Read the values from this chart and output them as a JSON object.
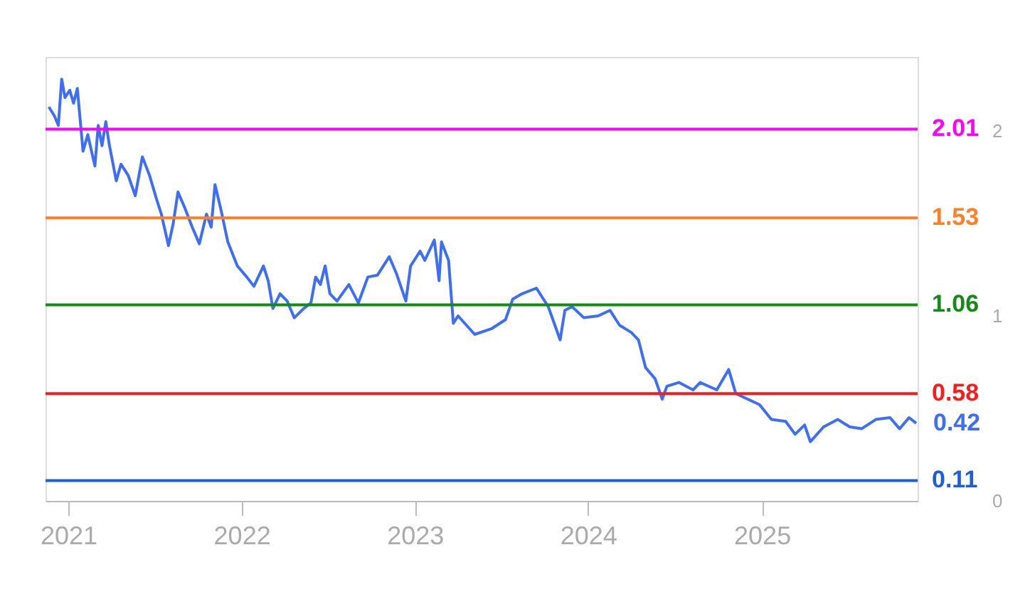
{
  "chart_data": {
    "type": "line",
    "x": [
      "2020-11-21",
      "2020-12-03",
      "2020-12-11",
      "2020-12-18",
      "2020-12-25",
      "2021-01-04",
      "2021-01-12",
      "2021-01-20",
      "2021-02-01",
      "2021-02-11",
      "2021-02-26",
      "2021-03-05",
      "2021-03-13",
      "2021-03-21",
      "2021-03-28",
      "2021-04-12",
      "2021-04-22",
      "2021-05-07",
      "2021-05-22",
      "2021-06-06",
      "2021-06-21",
      "2021-07-06",
      "2021-07-16",
      "2021-07-31",
      "2021-08-10",
      "2021-08-20",
      "2021-09-04",
      "2021-09-19",
      "2021-10-04",
      "2021-10-19",
      "2021-10-29",
      "2021-11-06",
      "2021-11-18",
      "2021-12-03",
      "2021-12-23",
      "2022-01-12",
      "2022-01-27",
      "2022-02-16",
      "2022-02-26",
      "2022-03-08",
      "2022-03-23",
      "2022-04-07",
      "2022-04-22",
      "2022-05-12",
      "2022-05-27",
      "2022-06-06",
      "2022-06-16",
      "2022-06-26",
      "2022-07-06",
      "2022-07-21",
      "2022-08-15",
      "2022-09-04",
      "2022-09-24",
      "2022-10-14",
      "2022-11-08",
      "2022-11-23",
      "2022-12-13",
      "2022-12-23",
      "2023-01-12",
      "2023-01-22",
      "2023-02-11",
      "2023-02-21",
      "2023-02-26",
      "2023-03-13",
      "2023-03-23",
      "2023-04-02",
      "2023-05-07",
      "2023-06-11",
      "2023-07-11",
      "2023-07-26",
      "2023-08-15",
      "2023-09-14",
      "2023-10-09",
      "2023-11-03",
      "2023-11-13",
      "2023-11-28",
      "2023-12-23",
      "2024-01-22",
      "2024-02-16",
      "2024-03-07",
      "2024-04-01",
      "2024-04-16",
      "2024-05-01",
      "2024-05-21",
      "2024-06-05",
      "2024-06-15",
      "2024-07-10",
      "2024-08-09",
      "2024-08-24",
      "2024-09-28",
      "2024-10-23",
      "2024-11-07",
      "2024-12-02",
      "2024-12-27",
      "2025-01-21",
      "2025-02-20",
      "2025-03-12",
      "2025-04-01",
      "2025-04-13",
      "2025-05-11",
      "2025-06-10",
      "2025-07-05",
      "2025-07-30",
      "2025-08-29",
      "2025-09-28",
      "2025-10-18",
      "2025-11-07",
      "2025-11-22"
    ],
    "series": [
      {
        "color": "#3d6ef5",
        "values": [
          2.13,
          2.08,
          2.03,
          2.28,
          2.18,
          2.22,
          2.15,
          2.23,
          1.89,
          1.98,
          1.81,
          2.03,
          1.92,
          2.05,
          1.93,
          1.73,
          1.82,
          1.76,
          1.65,
          1.86,
          1.76,
          1.63,
          1.55,
          1.38,
          1.5,
          1.67,
          1.58,
          1.48,
          1.39,
          1.55,
          1.48,
          1.71,
          1.58,
          1.4,
          1.27,
          1.21,
          1.16,
          1.27,
          1.19,
          1.04,
          1.12,
          1.08,
          0.99,
          1.04,
          1.07,
          1.21,
          1.17,
          1.27,
          1.12,
          1.08,
          1.17,
          1.07,
          1.21,
          1.22,
          1.32,
          1.23,
          1.08,
          1.27,
          1.35,
          1.3,
          1.41,
          1.19,
          1.4,
          1.3,
          0.96,
          1.0,
          0.9,
          0.93,
          0.98,
          1.09,
          1.12,
          1.15,
          1.05,
          0.87,
          1.03,
          1.05,
          0.99,
          1.0,
          1.03,
          0.95,
          0.91,
          0.87,
          0.72,
          0.66,
          0.55,
          0.62,
          0.64,
          0.6,
          0.64,
          0.6,
          0.71,
          0.58,
          0.55,
          0.52,
          0.44,
          0.43,
          0.36,
          0.41,
          0.32,
          0.4,
          0.44,
          0.4,
          0.39,
          0.44,
          0.45,
          0.39,
          0.45,
          0.42
        ]
      }
    ],
    "xlim": [
      "2020-11-14",
      "2025-11-25"
    ],
    "xticks": [
      {
        "value": "2021-01-01",
        "label": "2021"
      },
      {
        "value": "2022-01-01",
        "label": "2022"
      },
      {
        "value": "2023-01-01",
        "label": "2023"
      },
      {
        "value": "2024-01-01",
        "label": "2024"
      },
      {
        "value": "2025-01-01",
        "label": "2025"
      }
    ],
    "ylim": [
      0,
      2.4
    ],
    "yticks": [
      0,
      1,
      2
    ],
    "ref_lines": [
      {
        "axis": "y",
        "value": 2.01,
        "label": "2.01",
        "color": "#ff00ff"
      },
      {
        "axis": "y",
        "value": 1.53,
        "label": "1.53",
        "color": "#ff7f27"
      },
      {
        "axis": "y",
        "value": 1.06,
        "label": "1.06",
        "color": "#168a16"
      },
      {
        "axis": "y",
        "value": 0.58,
        "label": "0.58",
        "color": "#ff1a1a"
      },
      {
        "axis": "y",
        "value": 0.11,
        "label": "0.11",
        "color": "#1f5fd6"
      }
    ],
    "annotations": [
      {
        "text": "0.42",
        "x": "2025-11-22",
        "y": 0.42
      }
    ],
    "grid": false,
    "marker": "none",
    "line_style": "solid"
  }
}
